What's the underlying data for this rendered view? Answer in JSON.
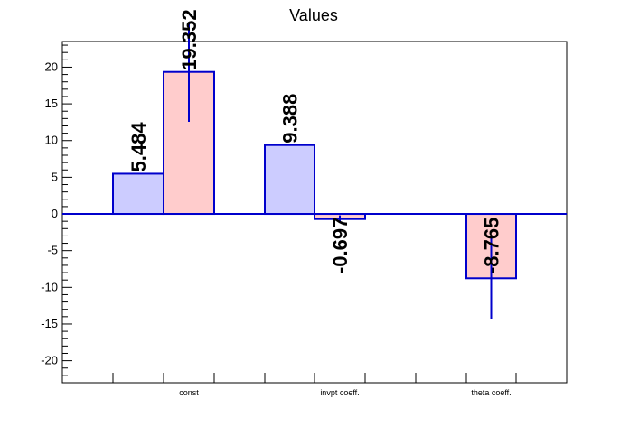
{
  "chart_data": {
    "type": "bar",
    "title": "Values",
    "xlabel": "",
    "ylabel": "",
    "categories": [
      "const",
      "invpt coeff.",
      "theta coeff."
    ],
    "ylim": [
      -23,
      23.5
    ],
    "yticks": [
      -20,
      -15,
      -10,
      -5,
      0,
      5,
      10,
      15,
      20
    ],
    "series": [
      {
        "values": [
          5.484,
          9.388,
          null
        ],
        "errors": [
          0,
          0,
          0
        ],
        "labels": [
          "5.484",
          "9.388",
          ""
        ]
      },
      {
        "values": [
          19.352,
          -0.697,
          -8.765
        ],
        "errors": [
          6.8,
          0.5,
          5.6
        ],
        "labels": [
          "19.352",
          "-0.697",
          "-8.765"
        ]
      }
    ],
    "colors": {
      "fill_a": "#ccccff",
      "fill_b": "#ffcccc",
      "stroke": "#0000cc",
      "axis": "#000000"
    },
    "grid": false,
    "legend": "none"
  }
}
